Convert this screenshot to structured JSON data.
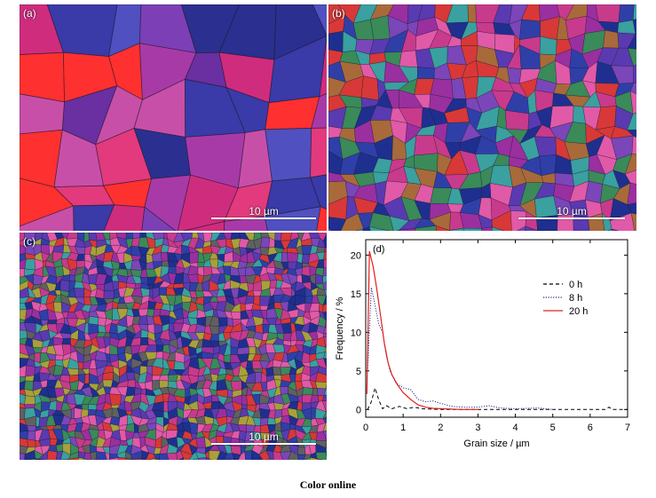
{
  "panels": [
    {
      "label": "(a)",
      "scale_bar": "10 µm",
      "palette": [
        "#6a2fa0",
        "#d02c7e",
        "#2b2f8f",
        "#e23a7c",
        "#a83aa8",
        "#5050c0",
        "#7d3fb5",
        "#ff3030",
        "#c84fa8",
        "#3a3aa8"
      ]
    },
    {
      "label": "(b)",
      "scale_bar": "10 µm",
      "palette": [
        "#2f3fa8",
        "#c83a8c",
        "#7a46b8",
        "#3a8a5a",
        "#d83838",
        "#5a3ab0",
        "#e05aa8",
        "#3aa0a0",
        "#a86a3a",
        "#1f2f8f",
        "#9a2fa0"
      ]
    },
    {
      "label": "(c)",
      "scale_bar": "10 µm",
      "palette": [
        "#2f3fa8",
        "#c83a8c",
        "#7a46b8",
        "#3a8a5a",
        "#d83838",
        "#5a3ab0",
        "#e05aa8",
        "#3aa0a0",
        "#a8a03a",
        "#1f2f8f",
        "#9a2fa0",
        "#606060"
      ]
    }
  ],
  "caption": "Color online",
  "chart_data": {
    "type": "line",
    "panel_label": "(d)",
    "title": "",
    "xlabel": "Grain size / µm",
    "ylabel": "Frequency / %",
    "xlim": [
      0,
      7
    ],
    "ylim": [
      -1,
      22
    ],
    "x_ticks": [
      0,
      1,
      2,
      3,
      4,
      5,
      6,
      7
    ],
    "y_ticks": [
      0,
      5,
      10,
      15,
      20
    ],
    "grid": false,
    "legend_position": "top-right",
    "series": [
      {
        "name": "0 h",
        "style": "dashed",
        "color": "#000000",
        "x": [
          0.05,
          0.15,
          0.25,
          0.35,
          0.45,
          0.55,
          0.7,
          0.9,
          1.1,
          1.3,
          1.5,
          2.0,
          3.0,
          4.0,
          5.0,
          6.0,
          6.4,
          6.5,
          6.6,
          7.0
        ],
        "y": [
          0,
          1,
          2.8,
          1.2,
          0.1,
          0.5,
          0.1,
          0.4,
          0.1,
          0.3,
          0.1,
          0,
          0,
          0,
          0,
          0,
          0,
          0.3,
          0,
          0
        ]
      },
      {
        "name": "8 h",
        "style": "dotted",
        "color": "#1a2a8a",
        "x": [
          0.05,
          0.15,
          0.25,
          0.35,
          0.45,
          0.55,
          0.65,
          0.8,
          1.0,
          1.2,
          1.4,
          1.6,
          1.8,
          2.0,
          2.3,
          2.6,
          3.0,
          3.3,
          3.6,
          4.0,
          4.6,
          5.0
        ],
        "y": [
          5,
          15.8,
          13.5,
          11,
          10,
          7,
          5,
          3.5,
          2.8,
          2.6,
          1.3,
          1.0,
          1.1,
          0.8,
          0.4,
          0.3,
          0.3,
          0.5,
          0.2,
          0.1,
          0.2,
          0
        ]
      },
      {
        "name": "20 h",
        "style": "solid",
        "color": "#e02020",
        "x": [
          0.03,
          0.1,
          0.2,
          0.3,
          0.4,
          0.5,
          0.6,
          0.7,
          0.85,
          1.0,
          1.2,
          1.4,
          1.6,
          1.8,
          2.0,
          2.3,
          2.6,
          3.0
        ],
        "y": [
          2,
          20.5,
          18.5,
          15.5,
          12,
          8.5,
          6,
          4.5,
          3.2,
          2.2,
          1.3,
          0.6,
          0.3,
          0.15,
          0.1,
          0.05,
          0,
          0
        ]
      }
    ]
  }
}
